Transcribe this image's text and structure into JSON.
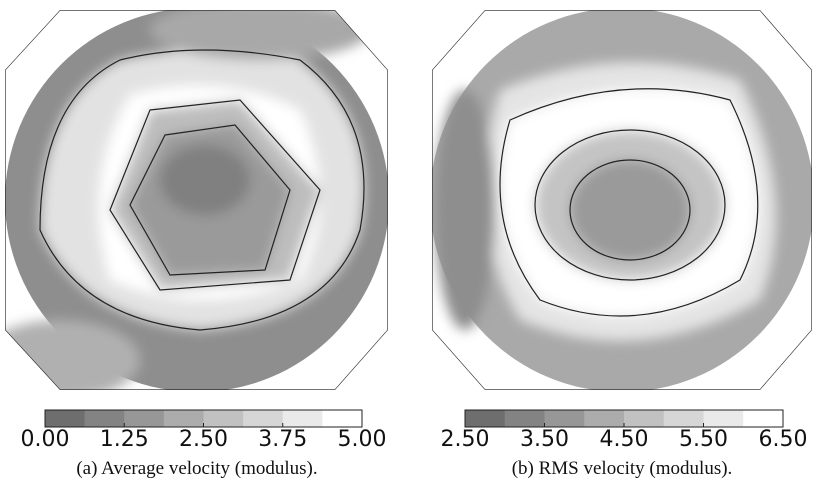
{
  "figures": [
    {
      "caption": "(a) Average velocity (modulus).",
      "colorbar": {
        "lim": [
          0,
          5
        ],
        "ticks": [
          {
            "value": 0,
            "label": "0.00"
          },
          {
            "value": 1.25,
            "label": "1.25"
          },
          {
            "value": 2.5,
            "label": "2.50"
          },
          {
            "value": 3.75,
            "label": "3.75"
          },
          {
            "value": 5,
            "label": "5.00"
          }
        ]
      }
    },
    {
      "caption": "(b) RMS velocity (modulus).",
      "colorbar": {
        "lim": [
          2.5,
          6.5
        ],
        "ticks": [
          {
            "value": 2.5,
            "label": "2.50"
          },
          {
            "value": 3.5,
            "label": "3.50"
          },
          {
            "value": 4.5,
            "label": "4.50"
          },
          {
            "value": 5.5,
            "label": "5.50"
          },
          {
            "value": 6.5,
            "label": "6.50"
          }
        ]
      }
    }
  ]
}
